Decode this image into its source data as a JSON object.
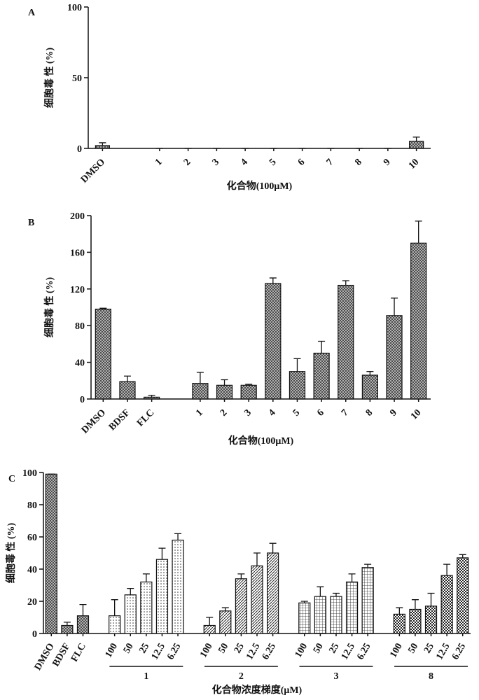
{
  "chart_data": [
    {
      "type": "bar",
      "panel": "A",
      "ylabel": "细胞毒 性 (%)",
      "xlabel": "化合物(100μM)",
      "ylim": [
        0,
        100
      ],
      "yticks": [
        0,
        50,
        100
      ],
      "groups": [
        {
          "pattern": "crosshatch",
          "categories": [
            "DMSO"
          ],
          "values": [
            2
          ],
          "errors": [
            2
          ]
        },
        {
          "pattern": "crosshatch",
          "categories": [
            "1",
            "2",
            "3",
            "4",
            "5",
            "6",
            "7",
            "8",
            "9",
            "10"
          ],
          "values": [
            0,
            0,
            0,
            0,
            0,
            0,
            0,
            0,
            0,
            5
          ],
          "errors": [
            0,
            0,
            0,
            0,
            0,
            0,
            0,
            0,
            0,
            3
          ]
        }
      ]
    },
    {
      "type": "bar",
      "panel": "B",
      "ylabel": "细胞毒 性 (%)",
      "xlabel": "化合物(100μM)",
      "ylim": [
        0,
        200
      ],
      "yticks": [
        0,
        40,
        80,
        120,
        160,
        200
      ],
      "groups": [
        {
          "pattern": "crosshatch",
          "categories": [
            "DMSO",
            "BDSF",
            "FLC"
          ],
          "values": [
            98,
            19,
            2
          ],
          "errors": [
            1,
            6,
            2
          ]
        },
        {
          "pattern": "crosshatch",
          "categories": [
            "1",
            "2",
            "3",
            "4",
            "5",
            "6",
            "7",
            "8",
            "9",
            "10"
          ],
          "values": [
            17,
            15,
            15,
            126,
            30,
            50,
            124,
            26,
            91,
            170
          ],
          "errors": [
            12,
            6,
            1,
            6,
            14,
            13,
            5,
            4,
            19,
            24
          ]
        }
      ]
    },
    {
      "type": "bar",
      "panel": "C",
      "ylabel": "细胞毒 性 (%)",
      "xlabel": "化合物浓度梯度(μM)",
      "ylim": [
        0,
        100
      ],
      "yticks": [
        0,
        20,
        40,
        60,
        80,
        100
      ],
      "groups": [
        {
          "pattern": "crosshatch",
          "categories": [
            "DMSO",
            "BDSF",
            "FLC"
          ],
          "values": [
            99,
            5,
            11
          ],
          "errors": [
            0,
            2,
            7
          ]
        },
        {
          "name": "1",
          "pattern": "dots",
          "categories": [
            "100",
            "50",
            "25",
            "12.5",
            "6.25"
          ],
          "values": [
            11,
            24,
            32,
            46,
            58
          ],
          "errors": [
            10,
            4,
            5,
            7,
            4
          ]
        },
        {
          "name": "2",
          "pattern": "diagonal",
          "categories": [
            "100",
            "50",
            "25",
            "12.5",
            "6.25"
          ],
          "values": [
            5,
            14,
            34,
            42,
            50
          ],
          "errors": [
            5,
            2,
            3,
            8,
            6
          ]
        },
        {
          "name": "3",
          "pattern": "grid",
          "categories": [
            "100",
            "50",
            "25",
            "12.5",
            "6.25"
          ],
          "values": [
            19,
            23,
            23,
            32,
            41
          ],
          "errors": [
            1,
            6,
            2,
            5,
            2
          ]
        },
        {
          "name": "8",
          "pattern": "checker",
          "categories": [
            "100",
            "50",
            "25",
            "12.5",
            "6.25"
          ],
          "values": [
            12,
            15,
            17,
            36,
            47
          ],
          "errors": [
            4,
            6,
            8,
            7,
            2
          ]
        }
      ]
    }
  ]
}
